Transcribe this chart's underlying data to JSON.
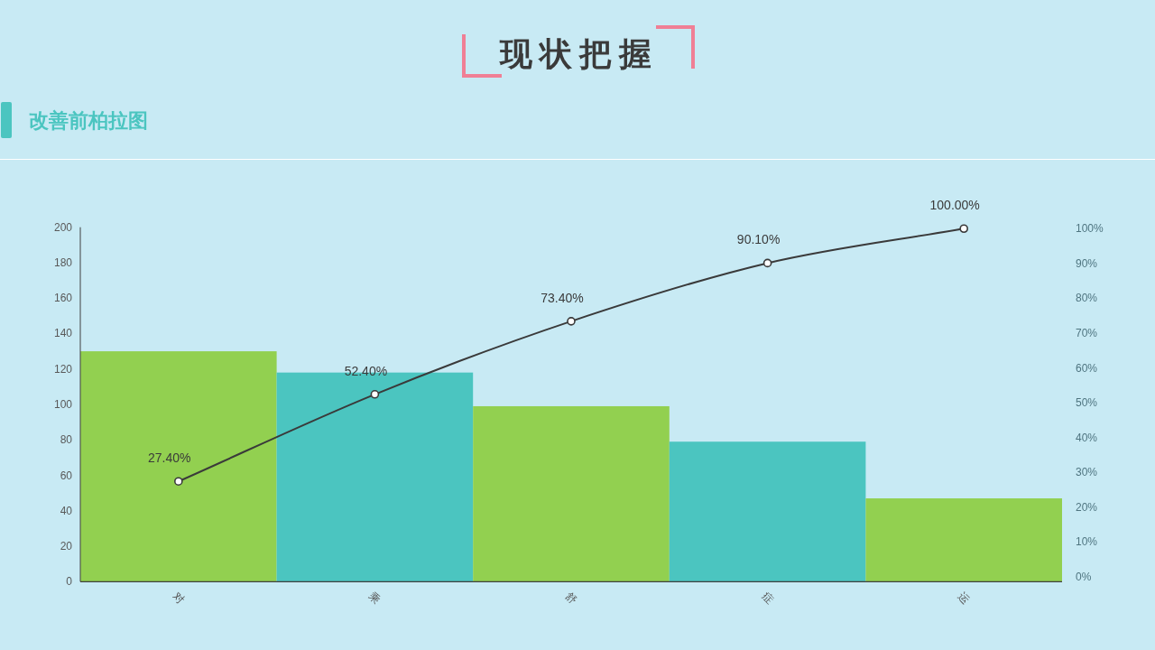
{
  "chart_data": {
    "type": "bar",
    "title": "现状把握",
    "subtitle": "改善前柏拉图",
    "categories": [
      "对",
      "乘",
      "舒",
      "症",
      "运"
    ],
    "series": [
      {
        "colors": [
          "#92d050",
          "#4bc5c0",
          "#92d050",
          "#4bc5c0",
          "#92d050"
        ],
        "values": [
          130,
          118,
          99,
          79,
          47
        ]
      },
      {
        "type": "line",
        "axis": "y2",
        "color": "#3a3a3a",
        "marker": "circle",
        "values": [
          27.4,
          52.4,
          73.4,
          90.1,
          100
        ],
        "value_labels": [
          "27.40%",
          "52.40%",
          "73.40%",
          "90.10%",
          "100.00%"
        ]
      }
    ],
    "ylim": [
      0,
      200
    ],
    "yticks": [
      0,
      20,
      40,
      60,
      80,
      100,
      120,
      140,
      160,
      180,
      200
    ],
    "y2lim": [
      -1.4,
      100.4
    ],
    "y2ticks": [
      {
        "value": 0,
        "label": "0%"
      },
      {
        "value": 10,
        "label": "10%"
      },
      {
        "value": 20,
        "label": "20%"
      },
      {
        "value": 30,
        "label": "30%"
      },
      {
        "value": 40,
        "label": "40%"
      },
      {
        "value": 50,
        "label": "50%"
      },
      {
        "value": 60,
        "label": "60%"
      },
      {
        "value": 70,
        "label": "70%"
      },
      {
        "value": 80,
        "label": "80%"
      },
      {
        "value": 90,
        "label": "90%"
      },
      {
        "value": 100,
        "label": "100%"
      }
    ]
  }
}
